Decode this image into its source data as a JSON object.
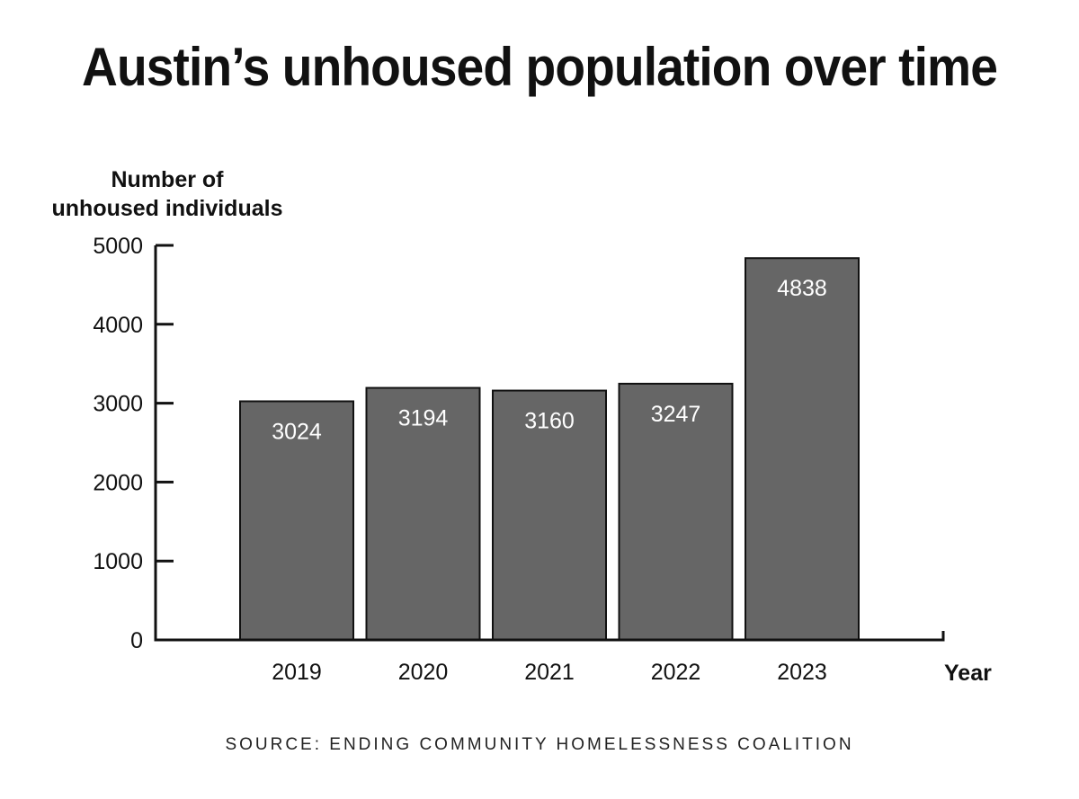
{
  "chart_data": {
    "type": "bar",
    "title": "Austin’s unhoused population over time",
    "ylabel_lines": [
      "Number of",
      "unhoused individuals"
    ],
    "xlabel": "Year",
    "categories": [
      "2019",
      "2020",
      "2021",
      "2022",
      "2023"
    ],
    "values": [
      3024,
      3194,
      3160,
      3247,
      4838
    ],
    "ylim": [
      0,
      5000
    ],
    "yticks": [
      0,
      1000,
      2000,
      3000,
      4000,
      5000
    ],
    "grid": false,
    "data_labels": true,
    "bar_color": "#666666",
    "bar_outline_color": "#111111",
    "data_label_color": "#ffffff"
  },
  "source": "SOURCE:  ENDING COMMUNITY HOMELESSNESS COALITION"
}
